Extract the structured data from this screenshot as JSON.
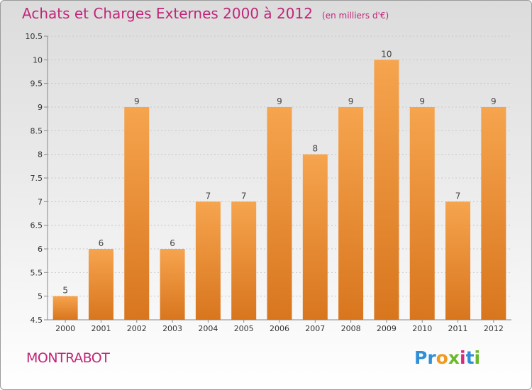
{
  "chart_data": {
    "type": "bar",
    "title": "Achats et Charges Externes 2000 à 2012",
    "subtitle": "(en milliers d'€)",
    "categories": [
      "2000",
      "2001",
      "2002",
      "2003",
      "2004",
      "2005",
      "2006",
      "2007",
      "2008",
      "2009",
      "2010",
      "2011",
      "2012"
    ],
    "values": [
      5,
      6,
      9,
      6,
      7,
      7,
      9,
      8,
      9,
      10,
      9,
      7,
      9
    ],
    "ylim": [
      4.5,
      10.5
    ],
    "yticks": [
      "4.5",
      "5",
      "5.5",
      "6",
      "6.5",
      "7",
      "7.5",
      "8",
      "8.5",
      "9",
      "9.5",
      "10",
      "10.5"
    ],
    "grid": true,
    "legend": "none",
    "bar_color_top": "#f6a44e",
    "bar_color_bottom": "#d8761e"
  },
  "footer": {
    "town": "MONTRABOT",
    "logo_letters": [
      {
        "char": "P",
        "color": "#2f8fd8"
      },
      {
        "char": "r",
        "color": "#2f8fd8"
      },
      {
        "char": "o",
        "color": "#f29a1f"
      },
      {
        "char": "x",
        "color": "#6bb82b"
      },
      {
        "char": "i",
        "color": "#d62a7b"
      },
      {
        "char": "t",
        "color": "#2f8fd8"
      },
      {
        "char": "i",
        "color": "#6bb82b"
      }
    ]
  },
  "colors": {
    "title": "#c0267a",
    "grid": "#c8c8c8",
    "axis_text": "#333333"
  }
}
